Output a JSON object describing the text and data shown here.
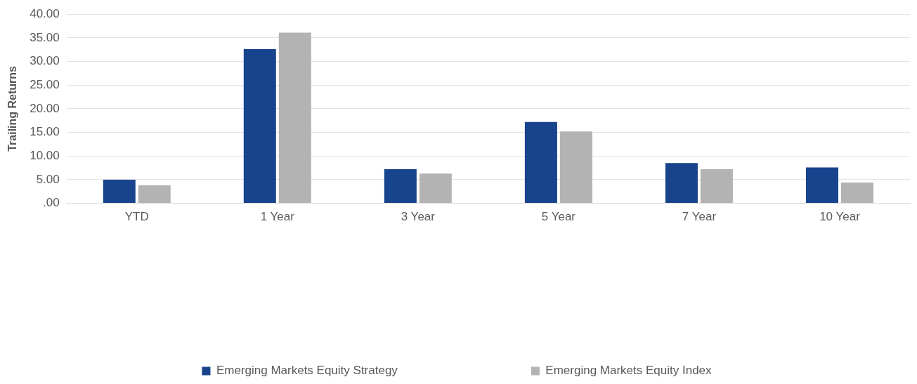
{
  "chart_data": {
    "type": "bar",
    "ylabel": "Trailing Returns",
    "categories": [
      "YTD",
      "1 Year",
      "3 Year",
      "5 Year",
      "7 Year",
      "10 Year"
    ],
    "series": [
      {
        "name": "Emerging Markets Equity Strategy",
        "color": "#17448c",
        "values": [
          5.0,
          32.6,
          7.2,
          17.2,
          8.5,
          7.6
        ]
      },
      {
        "name": "Emerging Markets Equity Index",
        "color": "#b3b3b3",
        "values": [
          3.8,
          36.1,
          6.3,
          15.2,
          7.2,
          4.4
        ]
      }
    ],
    "ylim": [
      0,
      40
    ],
    "yticks": [
      {
        "value": 0,
        "label": ".00"
      },
      {
        "value": 5,
        "label": "5.00"
      },
      {
        "value": 10,
        "label": "10.00"
      },
      {
        "value": 15,
        "label": "15.00"
      },
      {
        "value": 20,
        "label": "20.00"
      },
      {
        "value": 25,
        "label": "25.00"
      },
      {
        "value": 30,
        "label": "30.00"
      },
      {
        "value": 35,
        "label": "35.00"
      },
      {
        "value": 40,
        "label": "40.00"
      }
    ],
    "grid": "y",
    "legend": "bottom"
  }
}
